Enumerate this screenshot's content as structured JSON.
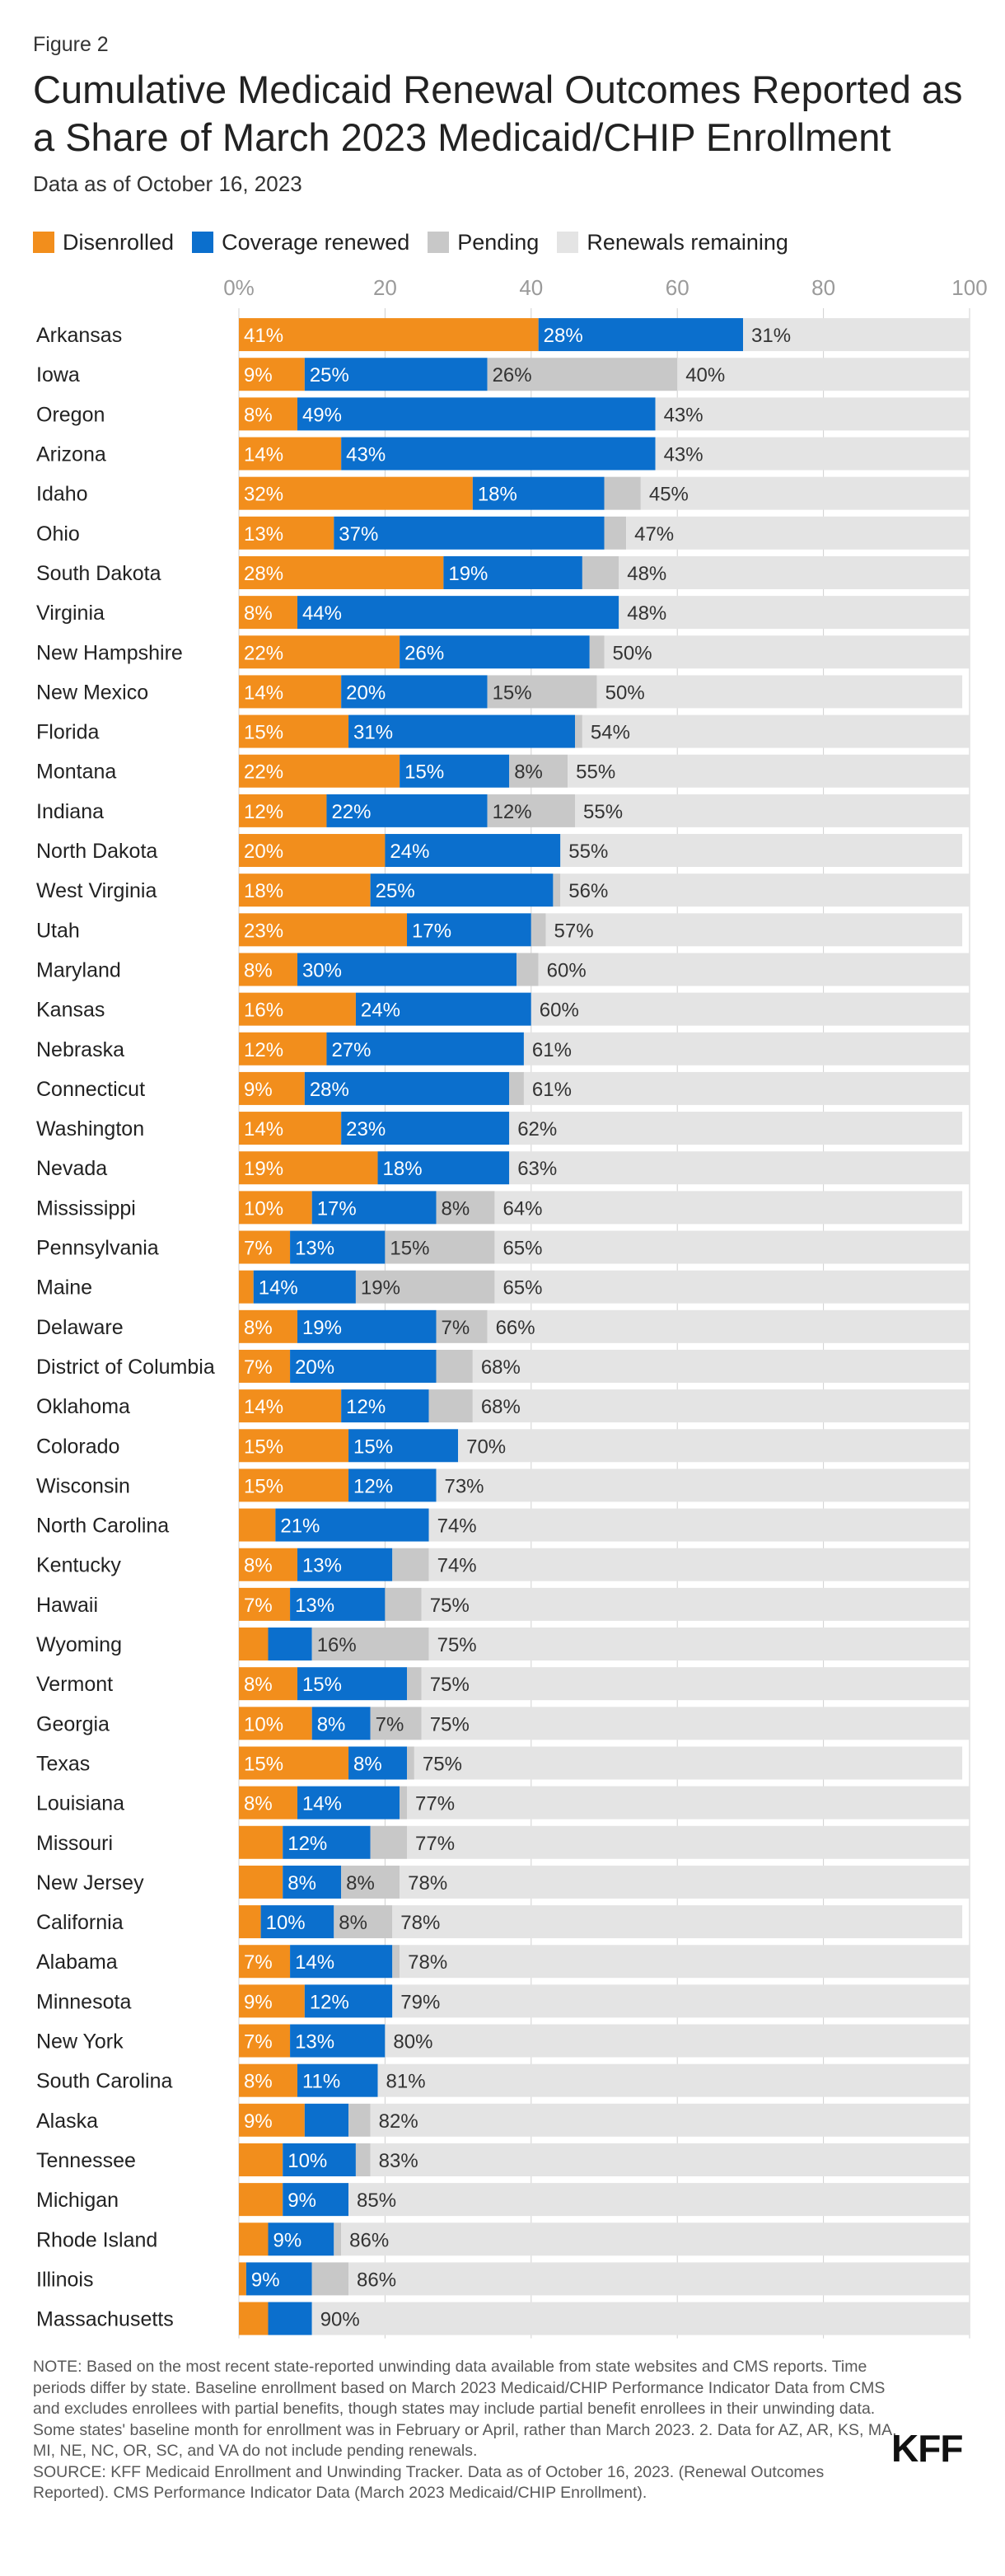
{
  "figure_label": "Figure 2",
  "title": "Cumulative Medicaid Renewal Outcomes Reported as a Share of March 2023 Medicaid/CHIP Enrollment",
  "subtitle": "Data as of October 16, 2023",
  "legend": [
    {
      "label": "Disenrolled",
      "color": "#f28e1c"
    },
    {
      "label": "Coverage renewed",
      "color": "#0b6fcd"
    },
    {
      "label": "Pending",
      "color": "#c8c8c8"
    },
    {
      "label": "Renewals remaining",
      "color": "#e4e4e4"
    }
  ],
  "note": "NOTE: Based on the most recent state-reported unwinding data available from state websites and CMS reports. Time periods differ by state. Baseline enrollment based on March 2023 Medicaid/CHIP Performance Indicator Data from CMS and excludes enrollees with partial benefits, though states may include partial benefit enrollees in their unwinding data. Some states' baseline month for enrollment was in February or April, rather than March 2023. 2. Data for AZ, AR, KS, MA, MI, NE, NC, OR, SC, and VA do not include pending renewals.",
  "source": "SOURCE: KFF Medicaid Enrollment and Unwinding Tracker. Data as of October 16, 2023. (Renewal Outcomes Reported). CMS Performance Indicator Data (March 2023 Medicaid/CHIP Enrollment).",
  "logo_text": "KFF",
  "chart_data": {
    "type": "bar",
    "orientation": "horizontal",
    "stacked": true,
    "xlim": [
      0,
      100
    ],
    "xticks": [
      0,
      20,
      40,
      60,
      80,
      100
    ],
    "xtick_labels": [
      "0%",
      "20",
      "40",
      "60",
      "80",
      "100"
    ],
    "grid": true,
    "legend_position": "top",
    "series_names": [
      "Disenrolled",
      "Coverage renewed",
      "Pending",
      "Renewals remaining"
    ],
    "series_colors": [
      "#f28e1c",
      "#0b6fcd",
      "#c8c8c8",
      "#e4e4e4"
    ],
    "rows": [
      {
        "state": "Arkansas",
        "disenrolled": 41,
        "renewed": 28,
        "pending": 0,
        "remaining": 31,
        "labels": [
          "41%",
          "28%",
          "",
          "31%"
        ]
      },
      {
        "state": "Iowa",
        "disenrolled": 9,
        "renewed": 25,
        "pending": 26,
        "remaining": 40,
        "labels": [
          "9%",
          "25%",
          "26%",
          "40%"
        ]
      },
      {
        "state": "Oregon",
        "disenrolled": 8,
        "renewed": 49,
        "pending": 0,
        "remaining": 43,
        "labels": [
          "8%",
          "49%",
          "",
          "43%"
        ]
      },
      {
        "state": "Arizona",
        "disenrolled": 14,
        "renewed": 43,
        "pending": 0,
        "remaining": 43,
        "labels": [
          "14%",
          "43%",
          "",
          "43%"
        ]
      },
      {
        "state": "Idaho",
        "disenrolled": 32,
        "renewed": 18,
        "pending": 5,
        "remaining": 45,
        "labels": [
          "32%",
          "18%",
          "",
          "45%"
        ]
      },
      {
        "state": "Ohio",
        "disenrolled": 13,
        "renewed": 37,
        "pending": 3,
        "remaining": 47,
        "labels": [
          "13%",
          "37%",
          "",
          "47%"
        ]
      },
      {
        "state": "South Dakota",
        "disenrolled": 28,
        "renewed": 19,
        "pending": 5,
        "remaining": 48,
        "labels": [
          "28%",
          "19%",
          "",
          "48%"
        ]
      },
      {
        "state": "Virginia",
        "disenrolled": 8,
        "renewed": 44,
        "pending": 0,
        "remaining": 48,
        "labels": [
          "8%",
          "44%",
          "",
          "48%"
        ]
      },
      {
        "state": "New Hampshire",
        "disenrolled": 22,
        "renewed": 26,
        "pending": 2,
        "remaining": 50,
        "labels": [
          "22%",
          "26%",
          "",
          "50%"
        ]
      },
      {
        "state": "New Mexico",
        "disenrolled": 14,
        "renewed": 20,
        "pending": 15,
        "remaining": 50,
        "labels": [
          "14%",
          "20%",
          "15%",
          "50%"
        ]
      },
      {
        "state": "Florida",
        "disenrolled": 15,
        "renewed": 31,
        "pending": 1,
        "remaining": 54,
        "labels": [
          "15%",
          "31%",
          "",
          "54%"
        ]
      },
      {
        "state": "Montana",
        "disenrolled": 22,
        "renewed": 15,
        "pending": 8,
        "remaining": 55,
        "labels": [
          "22%",
          "15%",
          "8%",
          "55%"
        ]
      },
      {
        "state": "Indiana",
        "disenrolled": 12,
        "renewed": 22,
        "pending": 12,
        "remaining": 55,
        "labels": [
          "12%",
          "22%",
          "12%",
          "55%"
        ]
      },
      {
        "state": "North Dakota",
        "disenrolled": 20,
        "renewed": 24,
        "pending": 0,
        "remaining": 55,
        "labels": [
          "20%",
          "24%",
          "",
          "55%"
        ]
      },
      {
        "state": "West Virginia",
        "disenrolled": 18,
        "renewed": 25,
        "pending": 1,
        "remaining": 56,
        "labels": [
          "18%",
          "25%",
          "",
          "56%"
        ]
      },
      {
        "state": "Utah",
        "disenrolled": 23,
        "renewed": 17,
        "pending": 2,
        "remaining": 57,
        "labels": [
          "23%",
          "17%",
          "",
          "57%"
        ]
      },
      {
        "state": "Maryland",
        "disenrolled": 8,
        "renewed": 30,
        "pending": 3,
        "remaining": 60,
        "labels": [
          "8%",
          "30%",
          "",
          "60%"
        ]
      },
      {
        "state": "Kansas",
        "disenrolled": 16,
        "renewed": 24,
        "pending": 0,
        "remaining": 60,
        "labels": [
          "16%",
          "24%",
          "",
          "60%"
        ]
      },
      {
        "state": "Nebraska",
        "disenrolled": 12,
        "renewed": 27,
        "pending": 0,
        "remaining": 61,
        "labels": [
          "12%",
          "27%",
          "",
          "61%"
        ]
      },
      {
        "state": "Connecticut",
        "disenrolled": 9,
        "renewed": 28,
        "pending": 2,
        "remaining": 61,
        "labels": [
          "9%",
          "28%",
          "",
          "61%"
        ]
      },
      {
        "state": "Washington",
        "disenrolled": 14,
        "renewed": 23,
        "pending": 0,
        "remaining": 62,
        "labels": [
          "14%",
          "23%",
          "",
          "62%"
        ]
      },
      {
        "state": "Nevada",
        "disenrolled": 19,
        "renewed": 18,
        "pending": 0,
        "remaining": 63,
        "labels": [
          "19%",
          "18%",
          "",
          "63%"
        ]
      },
      {
        "state": "Mississippi",
        "disenrolled": 10,
        "renewed": 17,
        "pending": 8,
        "remaining": 64,
        "labels": [
          "10%",
          "17%",
          "8%",
          "64%"
        ]
      },
      {
        "state": "Pennsylvania",
        "disenrolled": 7,
        "renewed": 13,
        "pending": 15,
        "remaining": 65,
        "labels": [
          "7%",
          "13%",
          "15%",
          "65%"
        ]
      },
      {
        "state": "Maine",
        "disenrolled": 2,
        "renewed": 14,
        "pending": 19,
        "remaining": 65,
        "labels": [
          "",
          "14%",
          "19%",
          "65%"
        ]
      },
      {
        "state": "Delaware",
        "disenrolled": 8,
        "renewed": 19,
        "pending": 7,
        "remaining": 66,
        "labels": [
          "8%",
          "19%",
          "7%",
          "66%"
        ]
      },
      {
        "state": "District of Columbia",
        "disenrolled": 7,
        "renewed": 20,
        "pending": 5,
        "remaining": 68,
        "labels": [
          "7%",
          "20%",
          "",
          "68%"
        ]
      },
      {
        "state": "Oklahoma",
        "disenrolled": 14,
        "renewed": 12,
        "pending": 6,
        "remaining": 68,
        "labels": [
          "14%",
          "12%",
          "",
          "68%"
        ]
      },
      {
        "state": "Colorado",
        "disenrolled": 15,
        "renewed": 15,
        "pending": 0,
        "remaining": 70,
        "labels": [
          "15%",
          "15%",
          "",
          "70%"
        ]
      },
      {
        "state": "Wisconsin",
        "disenrolled": 15,
        "renewed": 12,
        "pending": 0,
        "remaining": 73,
        "labels": [
          "15%",
          "12%",
          "",
          "73%"
        ]
      },
      {
        "state": "North Carolina",
        "disenrolled": 5,
        "renewed": 21,
        "pending": 0,
        "remaining": 74,
        "labels": [
          "",
          "21%",
          "",
          "74%"
        ]
      },
      {
        "state": "Kentucky",
        "disenrolled": 8,
        "renewed": 13,
        "pending": 5,
        "remaining": 74,
        "labels": [
          "8%",
          "13%",
          "",
          "74%"
        ]
      },
      {
        "state": "Hawaii",
        "disenrolled": 7,
        "renewed": 13,
        "pending": 5,
        "remaining": 75,
        "labels": [
          "7%",
          "13%",
          "",
          "75%"
        ]
      },
      {
        "state": "Wyoming",
        "disenrolled": 4,
        "renewed": 6,
        "pending": 16,
        "remaining": 75,
        "labels": [
          "",
          "",
          "16%",
          "75%"
        ]
      },
      {
        "state": "Vermont",
        "disenrolled": 8,
        "renewed": 15,
        "pending": 2,
        "remaining": 75,
        "labels": [
          "8%",
          "15%",
          "",
          "75%"
        ]
      },
      {
        "state": "Georgia",
        "disenrolled": 10,
        "renewed": 8,
        "pending": 7,
        "remaining": 75,
        "labels": [
          "10%",
          "8%",
          "7%",
          "75%"
        ]
      },
      {
        "state": "Texas",
        "disenrolled": 15,
        "renewed": 8,
        "pending": 1,
        "remaining": 75,
        "labels": [
          "15%",
          "8%",
          "",
          "75%"
        ]
      },
      {
        "state": "Louisiana",
        "disenrolled": 8,
        "renewed": 14,
        "pending": 1,
        "remaining": 77,
        "labels": [
          "8%",
          "14%",
          "",
          "77%"
        ]
      },
      {
        "state": "Missouri",
        "disenrolled": 6,
        "renewed": 12,
        "pending": 5,
        "remaining": 77,
        "labels": [
          "",
          "12%",
          "",
          "77%"
        ]
      },
      {
        "state": "New Jersey",
        "disenrolled": 6,
        "renewed": 8,
        "pending": 8,
        "remaining": 78,
        "labels": [
          "",
          "8%",
          "8%",
          "78%"
        ]
      },
      {
        "state": "California",
        "disenrolled": 3,
        "renewed": 10,
        "pending": 8,
        "remaining": 78,
        "labels": [
          "",
          "10%",
          "8%",
          "78%"
        ]
      },
      {
        "state": "Alabama",
        "disenrolled": 7,
        "renewed": 14,
        "pending": 1,
        "remaining": 78,
        "labels": [
          "7%",
          "14%",
          "",
          "78%"
        ]
      },
      {
        "state": "Minnesota",
        "disenrolled": 9,
        "renewed": 12,
        "pending": 0,
        "remaining": 79,
        "labels": [
          "9%",
          "12%",
          "",
          "79%"
        ]
      },
      {
        "state": "New York",
        "disenrolled": 7,
        "renewed": 13,
        "pending": 0,
        "remaining": 80,
        "labels": [
          "7%",
          "13%",
          "",
          "80%"
        ]
      },
      {
        "state": "South Carolina",
        "disenrolled": 8,
        "renewed": 11,
        "pending": 0,
        "remaining": 81,
        "labels": [
          "8%",
          "11%",
          "",
          "81%"
        ]
      },
      {
        "state": "Alaska",
        "disenrolled": 9,
        "renewed": 6,
        "pending": 3,
        "remaining": 82,
        "labels": [
          "9%",
          "",
          "",
          "82%"
        ]
      },
      {
        "state": "Tennessee",
        "disenrolled": 6,
        "renewed": 10,
        "pending": 2,
        "remaining": 83,
        "labels": [
          "",
          "10%",
          "",
          "83%"
        ]
      },
      {
        "state": "Michigan",
        "disenrolled": 6,
        "renewed": 9,
        "pending": 0,
        "remaining": 85,
        "labels": [
          "",
          "9%",
          "",
          "85%"
        ]
      },
      {
        "state": "Rhode Island",
        "disenrolled": 4,
        "renewed": 9,
        "pending": 1,
        "remaining": 86,
        "labels": [
          "",
          "9%",
          "",
          "86%"
        ]
      },
      {
        "state": "Illinois",
        "disenrolled": 1,
        "renewed": 9,
        "pending": 5,
        "remaining": 86,
        "labels": [
          "",
          "9%",
          "",
          "86%"
        ]
      },
      {
        "state": "Massachusetts",
        "disenrolled": 4,
        "renewed": 6,
        "pending": 0,
        "remaining": 90,
        "labels": [
          "",
          "",
          "",
          "90%"
        ]
      }
    ]
  }
}
